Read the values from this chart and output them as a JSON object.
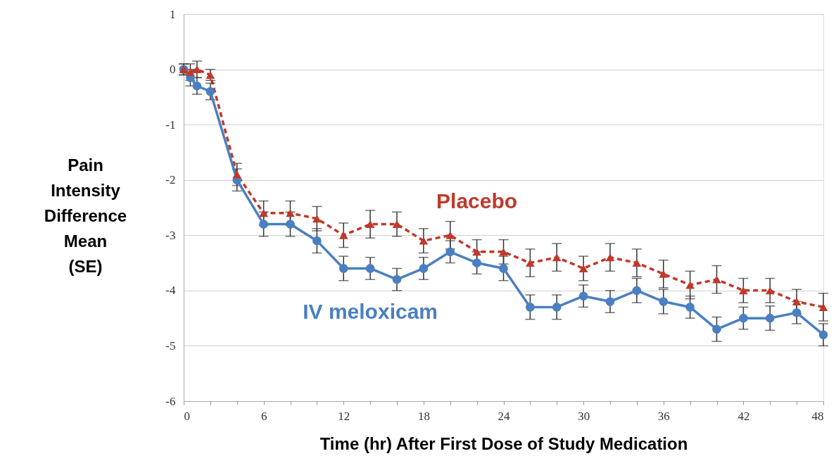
{
  "chart_data": {
    "type": "line",
    "xlabel": "Time (hr) After First Dose of Study Medication",
    "ylabel": "Pain Intensity Difference Mean (SE)",
    "x": [
      0,
      0.5,
      1,
      2,
      4,
      6,
      8,
      10,
      12,
      14,
      16,
      18,
      20,
      22,
      24,
      26,
      28,
      30,
      32,
      34,
      36,
      38,
      40,
      42,
      44,
      46,
      48
    ],
    "xlim": [
      0,
      48
    ],
    "xticks": [
      0,
      {
        "value": 2,
        "label": null
      },
      {
        "value": 4,
        "label": null
      },
      6,
      {
        "value": 8,
        "label": null
      },
      {
        "value": 10,
        "label": null
      },
      12,
      {
        "value": 14,
        "label": null
      },
      {
        "value": 16,
        "label": null
      },
      18,
      {
        "value": 20,
        "label": null
      },
      {
        "value": 22,
        "label": null
      },
      24,
      {
        "value": 26,
        "label": null
      },
      {
        "value": 28,
        "label": null
      },
      30,
      {
        "value": 32,
        "label": null
      },
      {
        "value": 34,
        "label": null
      },
      36,
      {
        "value": 38,
        "label": null
      },
      {
        "value": 40,
        "label": null
      },
      42,
      {
        "value": 44,
        "label": null
      },
      {
        "value": 46,
        "label": null
      },
      48
    ],
    "ylim": [
      -6,
      1
    ],
    "yticks": [
      -6,
      -5,
      -4,
      -3,
      -2,
      -1,
      0,
      1
    ],
    "grid": "y",
    "legend": false,
    "series": [
      {
        "name": "Placebo",
        "color": "#c0392b",
        "marker": "triangle",
        "line_style": "dashed",
        "values": [
          0,
          -0.05,
          0,
          -0.1,
          -1.9,
          -2.6,
          -2.6,
          -2.7,
          -3.0,
          -2.8,
          -2.8,
          -3.1,
          -3.0,
          -3.3,
          -3.3,
          -3.5,
          -3.4,
          -3.6,
          -3.4,
          -3.5,
          -3.7,
          -3.9,
          -3.8,
          -4.0,
          -4.0,
          -4.2,
          -4.3
        ],
        "errors": [
          0.1,
          0.15,
          0.15,
          0.1,
          0.2,
          0.22,
          0.22,
          0.22,
          0.22,
          0.25,
          0.22,
          0.22,
          0.25,
          0.22,
          0.22,
          0.25,
          0.25,
          0.22,
          0.25,
          0.25,
          0.25,
          0.25,
          0.25,
          0.22,
          0.22,
          0.22,
          0.25
        ]
      },
      {
        "name": "IV meloxicam",
        "color": "#4a7fc1",
        "marker": "circle",
        "line_style": "solid",
        "values": [
          0,
          -0.15,
          -0.3,
          -0.4,
          -2.0,
          -2.8,
          -2.8,
          -3.1,
          -3.6,
          -3.6,
          -3.8,
          -3.6,
          -3.3,
          -3.5,
          -3.6,
          -4.3,
          -4.3,
          -4.1,
          -4.2,
          -4.0,
          -4.2,
          -4.3,
          -4.7,
          -4.5,
          -4.5,
          -4.4,
          -4.8
        ],
        "errors": [
          0.1,
          0.15,
          0.15,
          0.15,
          0.2,
          0.22,
          0.22,
          0.22,
          0.22,
          0.2,
          0.2,
          0.2,
          0.2,
          0.2,
          0.22,
          0.22,
          0.22,
          0.2,
          0.2,
          0.22,
          0.22,
          0.2,
          0.22,
          0.2,
          0.22,
          0.2,
          0.2
        ]
      }
    ]
  }
}
